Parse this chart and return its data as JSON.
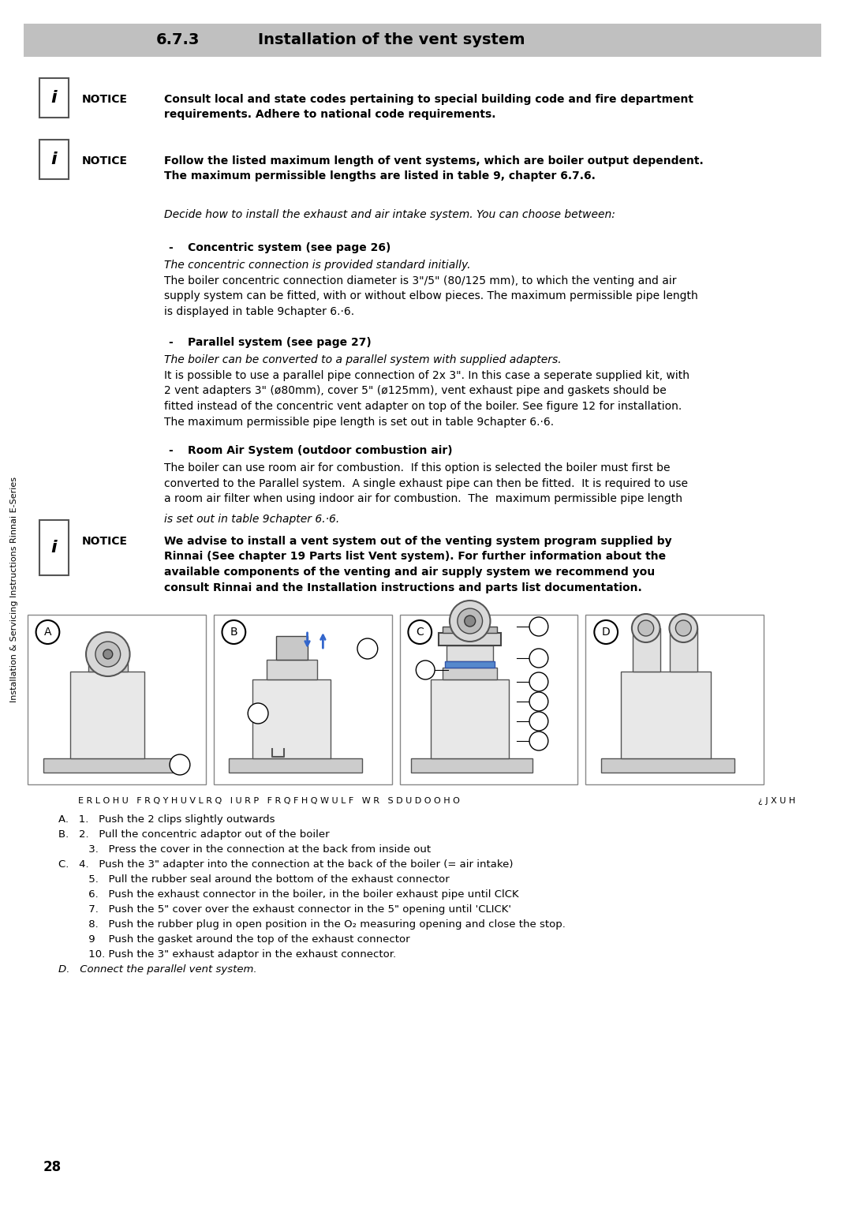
{
  "page_bg": "#ffffff",
  "header_bg": "#c0c0c0",
  "header_number": "6.7.3",
  "header_title": "Installation of the vent system",
  "header_fontsize": 14,
  "sidebar_text": "Installation & Servicing Instructions Rinnai E-Series",
  "page_number": "28",
  "notice1_bold": "Consult local and state codes pertaining to special building code and fire department\nrequirements. Adhere to national code requirements.",
  "notice2_bold": "Follow the listed maximum length of vent systems, which are boiler output dependent.\nThe maximum permissible lengths are listed in table 9, chapter 6.7.6.",
  "notice3_bold": "We advise to install a vent system out of the venting system program supplied by\nRinnai (See chapter 19 Parts list Vent system). For further information about the\navailable components of the venting and air supply system we recommend you\nconsult Rinnai and the Installation instructions and parts list documentation.",
  "intro_italic": "Decide how to install the exhaust and air intake system. You can choose between:",
  "section1_title": "Concentric system (see page 26)",
  "section1_italic": "The concentric connection is provided standard initially.",
  "section1_text": "The boiler concentric connection diameter is 3\"/5\" (80/125 mm), to which the venting and air\nsupply system can be fitted, with or without elbow pieces. The maximum permissible pipe length\nis displayed in table 9chapter 6.·6.",
  "section2_title": "Parallel system (see page 27)",
  "section2_italic": "The boiler can be converted to a parallel system with supplied adapters.",
  "section2_text": "It is possible to use a parallel pipe connection of 2x 3\". In this case a seperate supplied kit, with\n2 vent adapters 3\" (ø80mm), cover 5\" (ø125mm), vent exhaust pipe and gaskets should be\nfitted instead of the concentric vent adapter on top of the boiler. See figure 12 for installation.\nThe maximum permissible pipe length is set out in table 9chapter 6.·6.",
  "section3_title": "Room Air System (outdoor combustion air)",
  "section3_text": "The boiler can use room air for combustion.  If this option is selected the boiler must first be\nconverted to the Parallel system.  A single exhaust pipe can then be fitted.  It is required to use\na room air filter when using indoor air for combustion.  The  maximum permissible pipe length",
  "section3_italic": "is set out in table 9chapter 6.·6.",
  "figure_caption": "E R L O H U   F R Q Y H U V L R Q   I U R P   F R Q F H Q W U L F   W R   S D U D O O H O",
  "figure_caption_right": "¿ J X U H",
  "text_color": "#000000",
  "light_gray": "#d0d0d0",
  "border_color": "#555555"
}
